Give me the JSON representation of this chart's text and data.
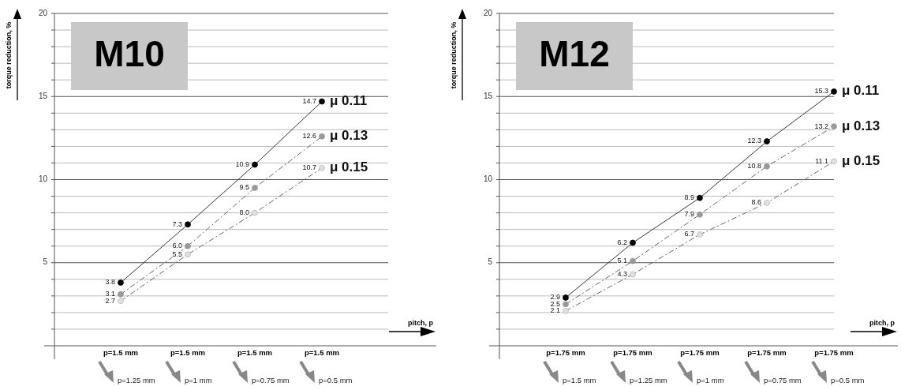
{
  "chart_data": [
    {
      "type": "line",
      "title": "M10",
      "ylabel": "torque reduction, %",
      "xlabel": "pitch, p",
      "categories": [
        "p=1.5 mm",
        "p=1.5 mm",
        "p=1.5 mm",
        "p=1.5 mm"
      ],
      "ylim": [
        0,
        20
      ],
      "yticks": [
        {
          "value": 1,
          "label": null
        },
        {
          "value": 2,
          "label": null
        },
        {
          "value": 3,
          "label": null
        },
        {
          "value": 4,
          "label": null
        },
        5,
        {
          "value": 6,
          "label": null
        },
        {
          "value": 7,
          "label": null
        },
        {
          "value": 8,
          "label": null
        },
        {
          "value": 9,
          "label": null
        },
        10,
        {
          "value": 11,
          "label": null
        },
        {
          "value": 12,
          "label": null
        },
        {
          "value": 13,
          "label": null
        },
        {
          "value": 14,
          "label": null
        },
        15,
        {
          "value": 16,
          "label": null
        },
        {
          "value": 17,
          "label": null
        },
        {
          "value": 18,
          "label": null
        },
        {
          "value": 19,
          "label": null
        },
        20
      ],
      "grid": "y",
      "marker": "circle",
      "annotations": [
        "p=1.25 mm",
        "p=1 mm",
        "p=0.75 mm",
        "p=0.5 mm"
      ],
      "series": [
        {
          "name": "μ 0.11",
          "color": "#000000",
          "line_style": "solid",
          "values": [
            3.8,
            7.3,
            10.9,
            14.7
          ],
          "value_labels": [
            "3.8",
            "7.3",
            "10.9",
            "14.7"
          ]
        },
        {
          "name": "μ 0.13",
          "color": "#999999",
          "line_style": "dashed",
          "values": [
            3.1,
            6.0,
            9.5,
            12.6
          ],
          "value_labels": [
            "3.1",
            "6.0",
            "9.5",
            "12.6"
          ]
        },
        {
          "name": "μ 0.15",
          "color": "#e0e0e0",
          "line_style": "dashed",
          "values": [
            2.7,
            5.5,
            8.0,
            10.7
          ],
          "value_labels": [
            "2.7",
            "5.5",
            "8.0",
            "10.7"
          ]
        }
      ]
    },
    {
      "type": "line",
      "title": "M12",
      "ylabel": "torque reduction, %",
      "xlabel": "pitch, p",
      "categories": [
        "p=1.75 mm",
        "p=1.75 mm",
        "p=1.75 mm",
        "p=1.75 mm",
        "p=1.75 mm"
      ],
      "ylim": [
        0,
        20
      ],
      "yticks": [
        {
          "value": 1,
          "label": null
        },
        {
          "value": 2,
          "label": null
        },
        {
          "value": 3,
          "label": null
        },
        {
          "value": 4,
          "label": null
        },
        5,
        {
          "value": 6,
          "label": null
        },
        {
          "value": 7,
          "label": null
        },
        {
          "value": 8,
          "label": null
        },
        {
          "value": 9,
          "label": null
        },
        10,
        {
          "value": 11,
          "label": null
        },
        {
          "value": 12,
          "label": null
        },
        {
          "value": 13,
          "label": null
        },
        {
          "value": 14,
          "label": null
        },
        15,
        {
          "value": 16,
          "label": null
        },
        {
          "value": 17,
          "label": null
        },
        {
          "value": 18,
          "label": null
        },
        {
          "value": 19,
          "label": null
        },
        20
      ],
      "grid": "y",
      "marker": "circle",
      "annotations": [
        "p=1.5 mm",
        "p=1.25 mm",
        "p=1 mm",
        "p=0.75 mm",
        "p=0.5 mm"
      ],
      "series": [
        {
          "name": "μ 0.11",
          "color": "#000000",
          "line_style": "solid",
          "values": [
            2.9,
            6.2,
            8.9,
            12.3,
            15.3
          ],
          "value_labels": [
            "2.9",
            "6.2",
            "8.9",
            "12.3",
            "15.3"
          ]
        },
        {
          "name": "μ 0.13",
          "color": "#999999",
          "line_style": "dashed",
          "values": [
            2.5,
            5.1,
            7.9,
            10.8,
            13.2
          ],
          "value_labels": [
            "2.5",
            "5.1",
            "7.9",
            "10.8",
            "13.2"
          ]
        },
        {
          "name": "μ 0.15",
          "color": "#e0e0e0",
          "line_style": "dashed",
          "values": [
            2.1,
            4.3,
            6.7,
            8.6,
            11.1
          ],
          "value_labels": [
            "2.1",
            "4.3",
            "6.7",
            "8.6",
            "11.1"
          ]
        }
      ]
    }
  ]
}
